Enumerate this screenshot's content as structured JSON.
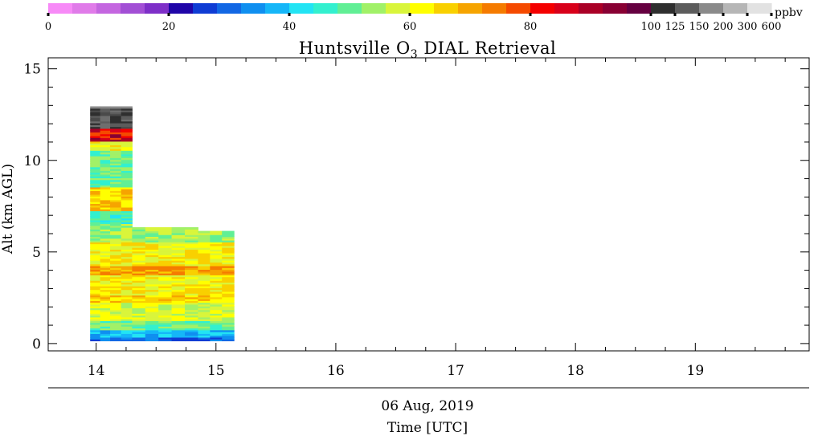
{
  "chart_data": {
    "type": "heatmap",
    "title": "Huntsville O",
    "title_subscript": "3",
    "title_rest": " DIAL Retrieval",
    "ylabel": "Alt (km AGL)",
    "date_label": "06 Aug, 2019",
    "xlabel": "Time [UTC]",
    "x_ticks": [
      "14",
      "15",
      "16",
      "17",
      "18",
      "19"
    ],
    "y_ticks": [
      "0",
      "5",
      "10",
      "15"
    ],
    "xlim": [
      13.6,
      19.95
    ],
    "ylim": [
      -0.4,
      15.6
    ],
    "colorbar": {
      "units": "ppbv",
      "tick_labels": [
        "0",
        "20",
        "40",
        "60",
        "80",
        "100",
        "125",
        "150",
        "200",
        "300",
        "600"
      ],
      "colors": [
        "#f78af7",
        "#e07be9",
        "#c466e0",
        "#a24fd5",
        "#7e2fc8",
        "#1f05a8",
        "#0f3cd4",
        "#1267e4",
        "#0f8ff0",
        "#15b6f8",
        "#22e4f4",
        "#33f0cf",
        "#61ef95",
        "#a1f168",
        "#d9f53b",
        "#ffff00",
        "#f9d000",
        "#f6a400",
        "#f57b00",
        "#f54a00",
        "#f40000",
        "#d8001a",
        "#aa0026",
        "#880033",
        "#650040",
        "#2f2f2f",
        "#5c5c5c",
        "#8a8a8a",
        "#b6b6b6",
        "#e2e2e2"
      ]
    },
    "profiles": [
      {
        "start": "13:57",
        "end": "14:07",
        "top_km": 12.9
      },
      {
        "start": "14:07",
        "end": "14:18",
        "top_km": 12.9
      },
      {
        "start": "14:18",
        "end": "14:51",
        "top_km": 6.3
      },
      {
        "start": "14:51",
        "end": "15:09",
        "top_km": 6.1
      }
    ]
  }
}
